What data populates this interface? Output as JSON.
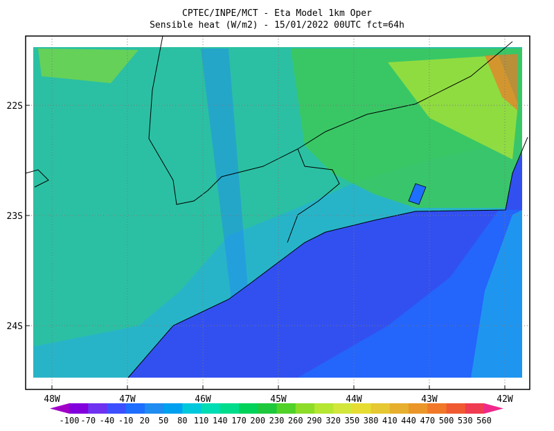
{
  "header": {
    "title": "CPTEC/INPE/MCT -  Eta Model 1km Oper",
    "subtitle": "Sensible heat (W/m2) - 15/01/2022 00UTC fct=64h"
  },
  "lat_labels": [
    "22S",
    "23S",
    "24S"
  ],
  "lon_labels": [
    "48W",
    "47W",
    "46W",
    "45W",
    "44W",
    "43W",
    "42W"
  ],
  "colorbar": {
    "labels": [
      -100,
      -70,
      -40,
      -10,
      20,
      50,
      80,
      110,
      140,
      170,
      200,
      230,
      260,
      290,
      320,
      350,
      380,
      410,
      440,
      470,
      500,
      530,
      560
    ],
    "colors": [
      "#a000c8",
      "#8200dc",
      "#6e32f0",
      "#3c50ff",
      "#1e6eff",
      "#1e8cf0",
      "#00a0f0",
      "#00c8dc",
      "#00dcb4",
      "#00dc8c",
      "#00d25a",
      "#1ec83c",
      "#50d228",
      "#8cdc28",
      "#b4e632",
      "#d2e63c",
      "#e6dc32",
      "#e6c832",
      "#e6af2d",
      "#eb9628",
      "#f07828",
      "#f05a32",
      "#f03c50",
      "#f0288c"
    ]
  }
}
